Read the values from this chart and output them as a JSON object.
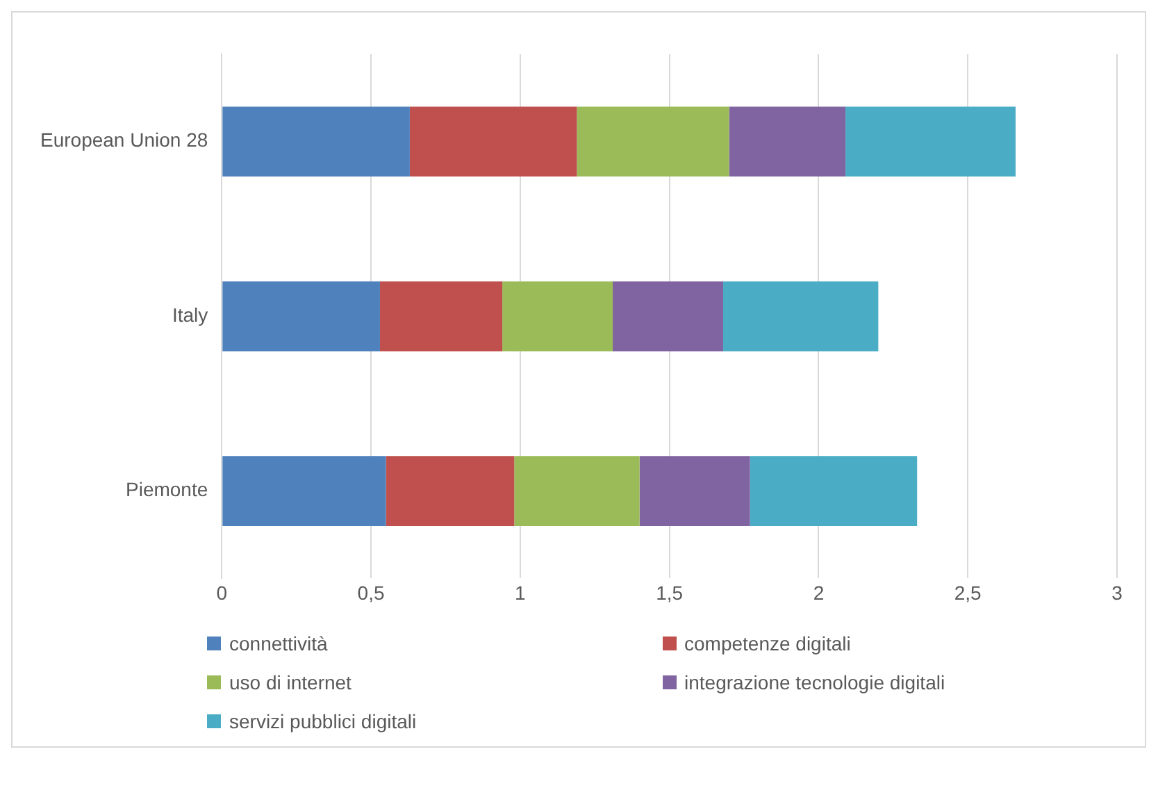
{
  "chart_data": {
    "type": "bar",
    "orientation": "horizontal",
    "stacked": true,
    "categories": [
      "European Union 28",
      "Italy",
      "Piemonte"
    ],
    "series": [
      {
        "name": "connettività",
        "color": "#4f81bd",
        "values": [
          0.63,
          0.53,
          0.55
        ]
      },
      {
        "name": "competenze digitali",
        "color": "#c0504d",
        "values": [
          0.56,
          0.41,
          0.43
        ]
      },
      {
        "name": "uso di internet",
        "color": "#9bbb59",
        "values": [
          0.51,
          0.37,
          0.42
        ]
      },
      {
        "name": "integrazione tecnologie digitali",
        "color": "#8064a2",
        "values": [
          0.39,
          0.37,
          0.37
        ]
      },
      {
        "name": "servizi pubblici digitali",
        "color": "#4bacc6",
        "values": [
          0.57,
          0.52,
          0.56
        ]
      }
    ],
    "xlim": [
      0,
      3
    ],
    "xticks": [
      {
        "value": 0,
        "label": "0"
      },
      {
        "value": 0.5,
        "label": "0,5"
      },
      {
        "value": 1,
        "label": "1"
      },
      {
        "value": 1.5,
        "label": "1,5"
      },
      {
        "value": 2,
        "label": "2"
      },
      {
        "value": 2.5,
        "label": "2,5"
      },
      {
        "value": 3,
        "label": "3"
      }
    ],
    "grid": "x",
    "legend": "bottom"
  }
}
